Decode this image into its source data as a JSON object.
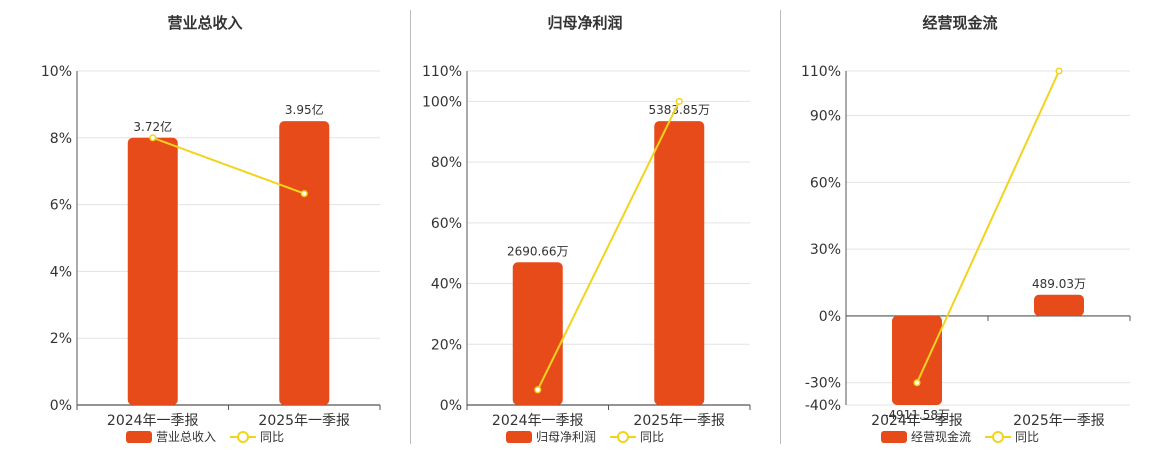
{
  "colors": {
    "bar": "#e84b1a",
    "line": "#f2d31d",
    "grid": "#e3e3e3",
    "axis": "#555555"
  },
  "chart_data": [
    {
      "type": "bar",
      "title": "营业总收入",
      "categories": [
        "2024年一季报",
        "2025年一季报"
      ],
      "bar_series": {
        "name": "营业总收入",
        "values": [
          8.0,
          8.5
        ],
        "labels": [
          "3.72亿",
          "3.95亿"
        ]
      },
      "line_series": {
        "name": "同比",
        "values": [
          8.0,
          6.33
        ]
      },
      "yticks": [
        "0%",
        "2%",
        "4%",
        "6%",
        "8%",
        "10%"
      ],
      "yvalues": [
        0,
        2,
        4,
        6,
        8,
        10
      ],
      "ylim": [
        0,
        10
      ],
      "legend": [
        "营业总收入",
        "同比"
      ]
    },
    {
      "type": "bar",
      "title": "归母净利润",
      "categories": [
        "2024年一季报",
        "2025年一季报"
      ],
      "bar_series": {
        "name": "归母净利润",
        "values": [
          47,
          93.5
        ],
        "labels": [
          "2690.66万",
          "5383.85万"
        ]
      },
      "line_series": {
        "name": "同比",
        "values": [
          5,
          100
        ]
      },
      "yticks": [
        "0%",
        "20%",
        "40%",
        "60%",
        "80%",
        "100%",
        "110%"
      ],
      "yvalues": [
        0,
        20,
        40,
        60,
        80,
        100,
        110
      ],
      "ylim": [
        0,
        110
      ],
      "legend": [
        "归母净利润",
        "同比"
      ]
    },
    {
      "type": "bar",
      "title": "经营现金流",
      "categories": [
        "2024年一季报",
        "2025年一季报"
      ],
      "bar_series": {
        "name": "经营现金流",
        "values": [
          -40,
          9.5
        ],
        "labels": [
          "-4911.58万",
          "489.03万"
        ]
      },
      "line_series": {
        "name": "同比",
        "values": [
          -30,
          110
        ]
      },
      "yticks": [
        "-40%",
        "-30%",
        "0%",
        "30%",
        "60%",
        "90%",
        "110%"
      ],
      "yvalues": [
        -40,
        -30,
        0,
        30,
        60,
        90,
        110
      ],
      "ylim": [
        -40,
        110
      ],
      "legend": [
        "经营现金流",
        "同比"
      ]
    }
  ]
}
